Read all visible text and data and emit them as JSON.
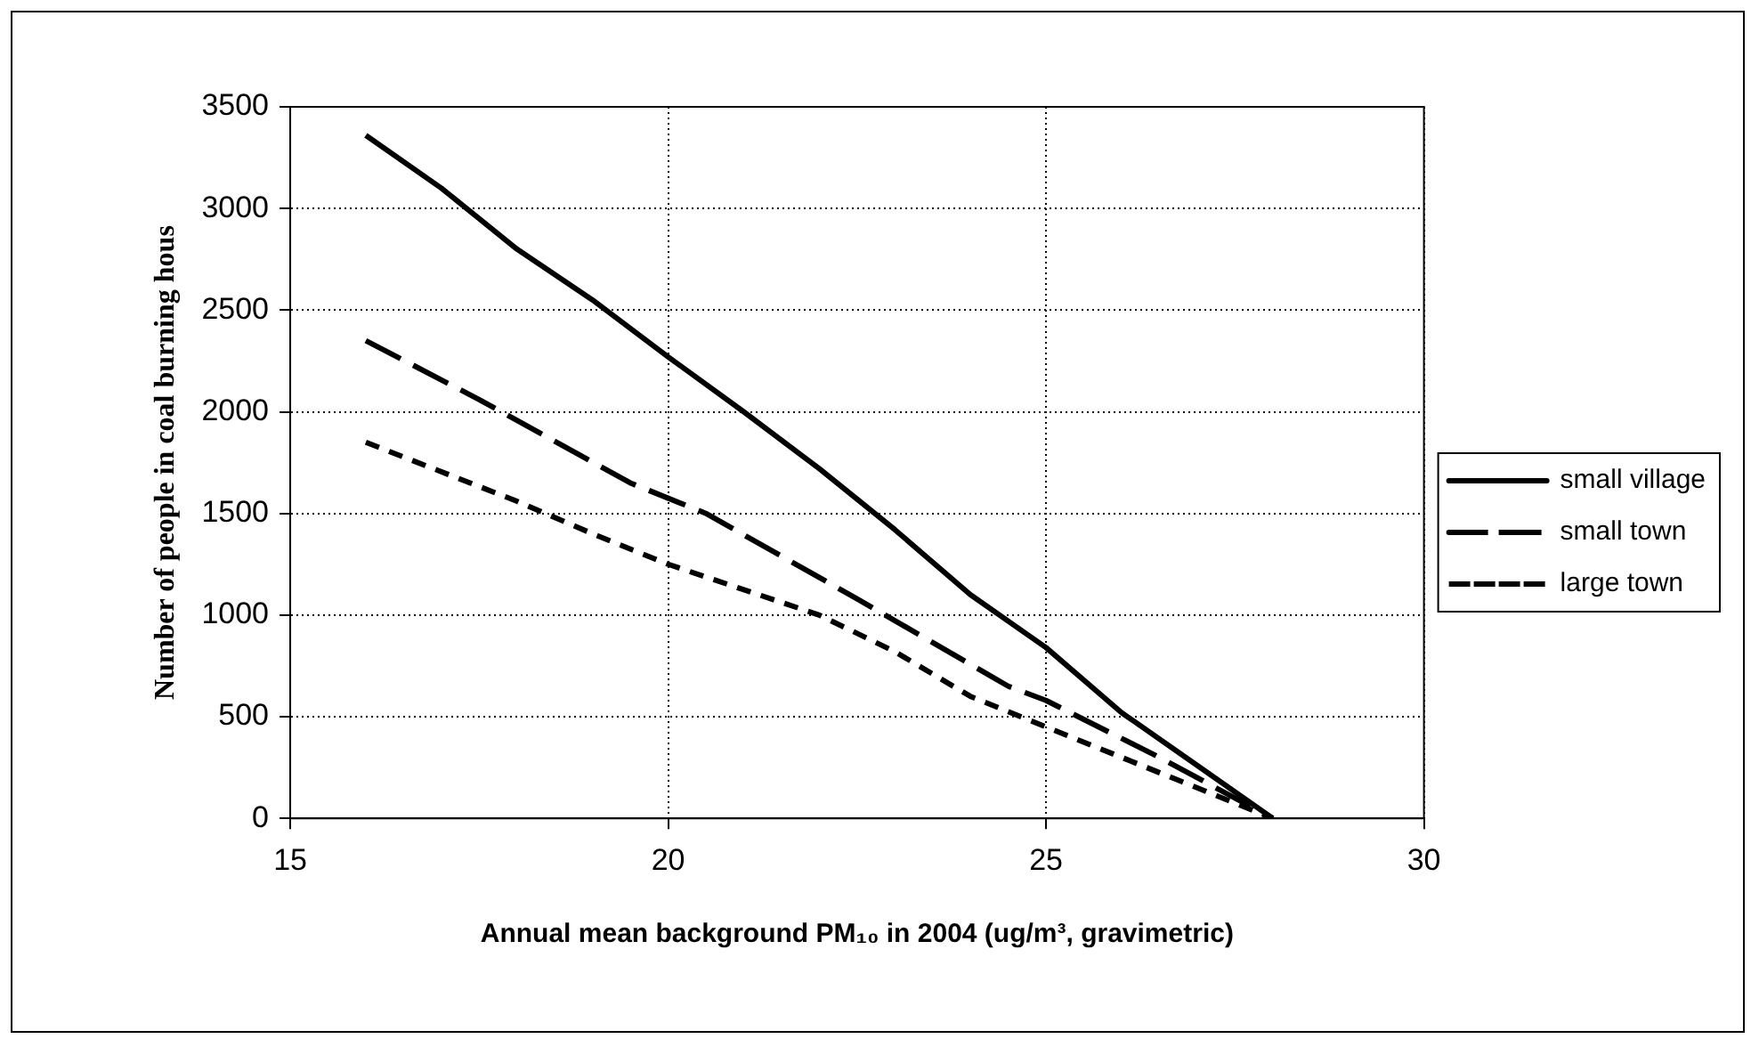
{
  "chart_data": {
    "type": "line",
    "xlabel": "Annual mean background PM₁₀ in 2004 (ug/m³, gravimetric)",
    "ylabel": "Number of people in coal burning hous",
    "xlim": [
      15,
      30
    ],
    "xticks": [
      15,
      20,
      25,
      30
    ],
    "ylim": [
      0,
      3500
    ],
    "yticks": [
      0,
      500,
      1000,
      1500,
      2000,
      2500,
      3000,
      3500
    ],
    "grid": true,
    "legend": "right",
    "marker": "none",
    "series": [
      {
        "name": "small village",
        "color": "#000000",
        "line_style": "solid",
        "x": [
          16,
          17,
          18,
          19,
          20,
          21,
          22,
          23,
          24,
          25,
          26,
          27,
          28
        ],
        "values": [
          3360,
          3100,
          2800,
          2550,
          2270,
          2000,
          1720,
          1420,
          1100,
          840,
          520,
          260,
          0
        ]
      },
      {
        "name": "small town",
        "color": "#000000",
        "line_style": "dashed",
        "x": [
          16,
          17.5,
          19.5,
          20.5,
          22.5,
          24.5,
          25,
          26.5,
          28
        ],
        "values": [
          2350,
          2060,
          1650,
          1500,
          1080,
          650,
          580,
          300,
          0
        ]
      },
      {
        "name": "large town",
        "color": "#000000",
        "line_style": "dotted",
        "x": [
          16,
          18,
          19,
          20,
          22,
          23,
          24,
          25,
          26,
          28
        ],
        "values": [
          1850,
          1560,
          1400,
          1250,
          1000,
          820,
          600,
          450,
          300,
          0
        ]
      }
    ]
  }
}
